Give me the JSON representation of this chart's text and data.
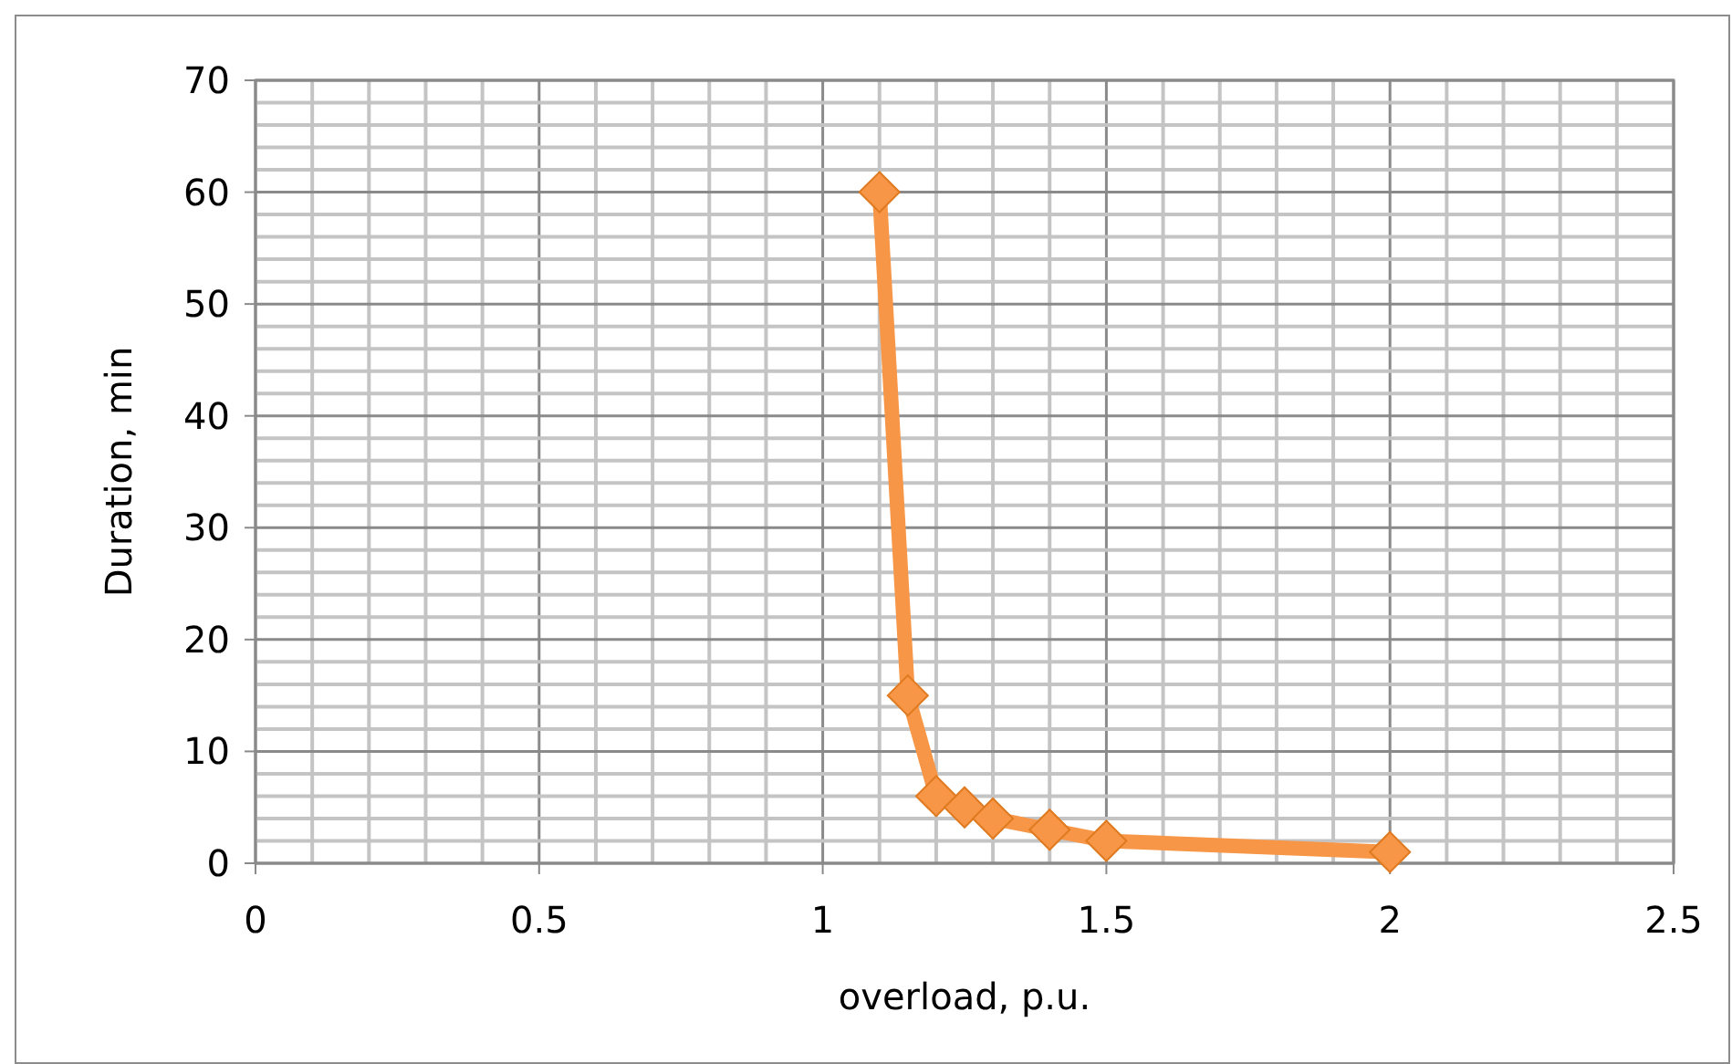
{
  "chart_data": {
    "type": "line",
    "xlabel": "overload, p.u.",
    "ylabel": "Duration, min",
    "x": [
      1.1,
      1.15,
      1.2,
      1.25,
      1.3,
      1.4,
      1.5,
      2
    ],
    "series": [
      {
        "color": "#f79646",
        "values": [
          60,
          15,
          6,
          5,
          4,
          3,
          2,
          1
        ]
      }
    ],
    "xlim": [
      0,
      2.5
    ],
    "xticks": [
      0,
      {
        "value": 0.1,
        "label": null
      },
      {
        "value": 0.2,
        "label": null
      },
      {
        "value": 0.3,
        "label": null
      },
      {
        "value": 0.4,
        "label": null
      },
      0.5,
      {
        "value": 0.6,
        "label": null
      },
      {
        "value": 0.7,
        "label": null
      },
      {
        "value": 0.8,
        "label": null
      },
      {
        "value": 0.9,
        "label": null
      },
      1,
      {
        "value": 1.1,
        "label": null
      },
      {
        "value": 1.2,
        "label": null
      },
      {
        "value": 1.3,
        "label": null
      },
      {
        "value": 1.4,
        "label": null
      },
      1.5,
      {
        "value": 1.6,
        "label": null
      },
      {
        "value": 1.7,
        "label": null
      },
      {
        "value": 1.8,
        "label": null
      },
      {
        "value": 1.9,
        "label": null
      },
      2,
      {
        "value": 2.1,
        "label": null
      },
      {
        "value": 2.2,
        "label": null
      },
      {
        "value": 2.3,
        "label": null
      },
      {
        "value": 2.4,
        "label": null
      },
      2.5
    ],
    "ylim": [
      0,
      70
    ],
    "yticks": [
      0,
      {
        "value": 2,
        "label": null
      },
      {
        "value": 4,
        "label": null
      },
      {
        "value": 6,
        "label": null
      },
      {
        "value": 8,
        "label": null
      },
      10,
      {
        "value": 12,
        "label": null
      },
      {
        "value": 14,
        "label": null
      },
      {
        "value": 16,
        "label": null
      },
      {
        "value": 18,
        "label": null
      },
      20,
      {
        "value": 22,
        "label": null
      },
      {
        "value": 24,
        "label": null
      },
      {
        "value": 26,
        "label": null
      },
      {
        "value": 28,
        "label": null
      },
      30,
      {
        "value": 32,
        "label": null
      },
      {
        "value": 34,
        "label": null
      },
      {
        "value": 36,
        "label": null
      },
      {
        "value": 38,
        "label": null
      },
      40,
      {
        "value": 42,
        "label": null
      },
      {
        "value": 44,
        "label": null
      },
      {
        "value": 46,
        "label": null
      },
      {
        "value": 48,
        "label": null
      },
      50,
      {
        "value": 52,
        "label": null
      },
      {
        "value": 54,
        "label": null
      },
      {
        "value": 56,
        "label": null
      },
      {
        "value": 58,
        "label": null
      },
      60,
      {
        "value": 62,
        "label": null
      },
      {
        "value": 64,
        "label": null
      },
      {
        "value": 66,
        "label": null
      },
      {
        "value": 68,
        "label": null
      },
      70
    ],
    "grid": true,
    "marker": "diamond",
    "line_style": "solid"
  }
}
